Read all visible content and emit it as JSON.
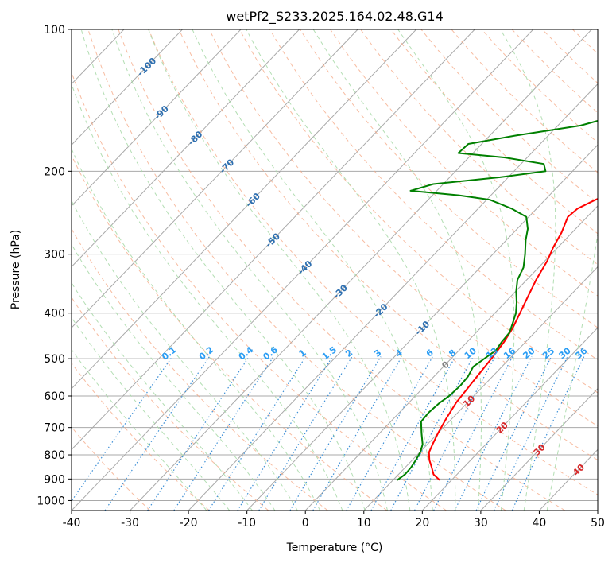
{
  "chart_data": {
    "type": "line",
    "title": "wetPf2_S233.2025.164.02.48.G14",
    "xlabel": "Temperature (°C)",
    "ylabel": "Pressure (hPa)",
    "xlim": [
      -40,
      50
    ],
    "ylim": [
      1050,
      100
    ],
    "y_scale": "log",
    "grid": true,
    "x_ticks": [
      -40,
      -30,
      -20,
      -10,
      0,
      10,
      20,
      30,
      40,
      50
    ],
    "y_ticks": [
      100,
      200,
      300,
      400,
      500,
      600,
      700,
      800,
      900,
      1000
    ],
    "colors": {
      "temperature": "#ff0000",
      "dewpoint": "#008000",
      "isotherm_grid": "#a9a9a9",
      "dry_adiabat": "#f4a582",
      "moist_adiabat": "#a6d8a6",
      "mixing_ratio": "#3d8fd6",
      "pressure_grid": "#a9a9a9",
      "isotherm_label": "#2e6fb0",
      "mixing_label": "#2a9df4",
      "low_isotherm_label": "#d62728"
    },
    "series": [
      {
        "key": "temperature",
        "x": [
          18.0,
          16.0,
          14.5,
          12.9,
          11.6,
          10.9,
          10.0,
          9.0,
          8.1,
          7.8,
          7.4,
          6.9,
          6.3,
          5.5,
          4.3,
          3.0,
          1.6,
          0.4,
          -0.8,
          -1.8,
          -3.3,
          -3.0,
          -1.4,
          0.9,
          3.3,
          5.1,
          6.9,
          9.0,
          11.1,
          13.2,
          15.1,
          16.9,
          18.4
        ],
        "y": [
          905,
          880,
          850,
          820,
          790,
          760,
          720,
          670,
          620,
          590,
          550,
          500,
          460,
          430,
          400,
          370,
          340,
          310,
          290,
          270,
          250,
          240,
          230,
          220,
          205,
          190,
          175,
          160,
          145,
          130,
          120,
          110,
          100
        ],
        "labels_dx": 0
      },
      {
        "key": "dewpoint",
        "x": [
          10.7,
          11.1,
          11.0,
          10.6,
          10.1,
          9.2,
          7.2,
          5.2,
          5.0,
          5.3,
          5.8,
          6.0,
          5.8,
          5.1,
          5.7,
          6.3,
          5.9,
          5.7,
          4.7,
          3.6,
          2.0,
          0.1,
          -1.6,
          -2.6,
          -4.5,
          -6.7,
          -8.2,
          -10.4,
          -14.3,
          -19.4,
          -25.5,
          -34.5,
          -31.7,
          -21.4,
          -14.6,
          -16.1,
          -23.8,
          -32.5,
          -32.3,
          -25.6,
          -16.1,
          -13.2,
          -10.3,
          -9.1,
          -5.8,
          -3.6,
          -1.6,
          -0.6
        ],
        "y": [
          905,
          880,
          850,
          820,
          790,
          760,
          720,
          680,
          650,
          620,
          600,
          570,
          545,
          520,
          500,
          480,
          460,
          440,
          420,
          400,
          380,
          360,
          340,
          320,
          300,
          280,
          265,
          250,
          240,
          230,
          225,
          220,
          213,
          206,
          200,
          193,
          187,
          183,
          175,
          168,
          160,
          155,
          148,
          140,
          128,
          117,
          106,
          100
        ],
        "labels_dx": 0
      }
    ],
    "isotherm_labels": [
      "-100",
      "-90",
      "-80",
      "-70",
      "-60",
      "-50",
      "-40",
      "-30",
      "-20",
      "-10",
      "0",
      "10",
      "20",
      "30",
      "40"
    ],
    "mixing_ratio_labels": [
      "0.1",
      "0.2",
      "0.4",
      "0.6",
      "1",
      "1.5",
      "2",
      "3",
      "4",
      "6",
      "8",
      "10",
      "13",
      "16",
      "20",
      "25",
      "30",
      "36"
    ]
  }
}
